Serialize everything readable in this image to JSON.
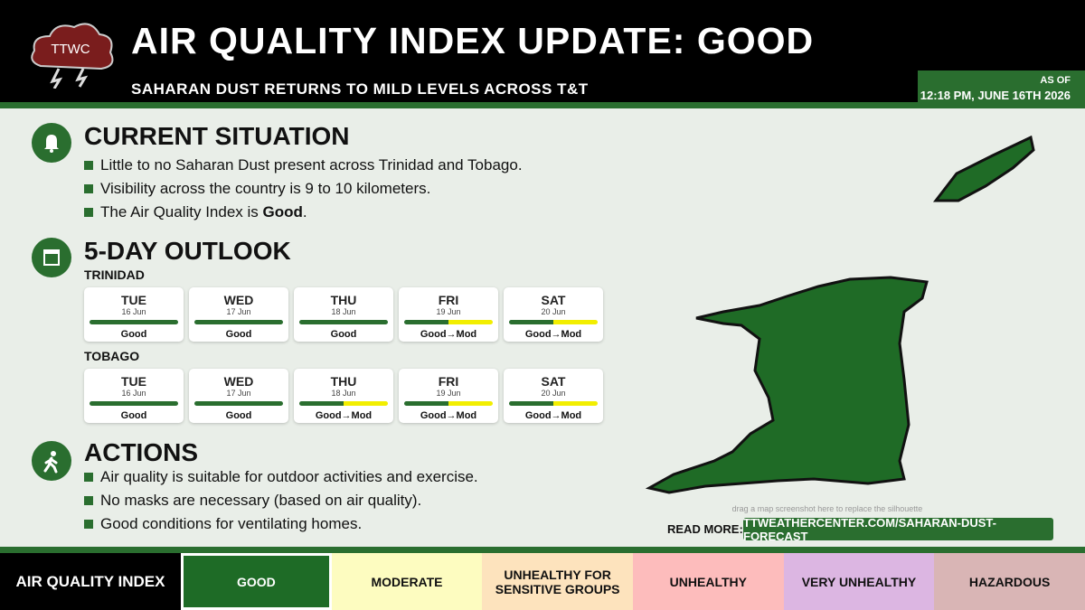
{
  "header": {
    "logo": "TTWC",
    "title": "AIR QUALITY INDEX UPDATE: GOOD",
    "subtitle": "SAHARAN DUST RETURNS TO MILD LEVELS ACROSS T&T",
    "as_of_label": "AS OF",
    "as_of": "12:18 PM, JUNE 16TH 2026"
  },
  "situation": {
    "heading": "CURRENT SITUATION",
    "bullets": [
      {
        "parts": [
          "Little to no Saharan Dust present across Trinidad and Tobago."
        ]
      },
      {
        "parts": [
          "Visibility across the country is 9 to 10 kilometers."
        ]
      },
      {
        "parts": [
          "The Air Quality Index is ",
          "Good",
          "."
        ]
      }
    ]
  },
  "outlook": {
    "heading": "5-DAY OUTLOOK",
    "regions": [
      {
        "name": "TRINIDAD",
        "days": [
          {
            "day": "TUE",
            "date": "16 Jun",
            "status": "Good",
            "bar": [
              "#2a6e2f"
            ]
          },
          {
            "day": "WED",
            "date": "17 Jun",
            "status": "Good",
            "bar": [
              "#2a6e2f"
            ]
          },
          {
            "day": "THU",
            "date": "18 Jun",
            "status": "Good",
            "bar": [
              "#2a6e2f"
            ]
          },
          {
            "day": "FRI",
            "date": "19 Jun",
            "status": "Good→Mod",
            "bar": [
              "#2a6e2f",
              "#f2ee00"
            ]
          },
          {
            "day": "SAT",
            "date": "20 Jun",
            "status": "Good→Mod",
            "bar": [
              "#2a6e2f",
              "#f2ee00"
            ]
          }
        ]
      },
      {
        "name": "TOBAGO",
        "days": [
          {
            "day": "TUE",
            "date": "16 Jun",
            "status": "Good",
            "bar": [
              "#2a6e2f"
            ]
          },
          {
            "day": "WED",
            "date": "17 Jun",
            "status": "Good",
            "bar": [
              "#2a6e2f"
            ]
          },
          {
            "day": "THU",
            "date": "18 Jun",
            "status": "Good→Mod",
            "bar": [
              "#2a6e2f",
              "#f2ee00"
            ]
          },
          {
            "day": "FRI",
            "date": "19 Jun",
            "status": "Good→Mod",
            "bar": [
              "#2a6e2f",
              "#f2ee00"
            ]
          },
          {
            "day": "SAT",
            "date": "20 Jun",
            "status": "Good→Mod",
            "bar": [
              "#2a6e2f",
              "#f2ee00"
            ]
          }
        ]
      }
    ]
  },
  "actions": {
    "heading": "ACTIONS",
    "bullets": [
      {
        "parts": [
          "Air quality is suitable for outdoor activities and exercise."
        ]
      },
      {
        "parts": [
          "No masks are necessary (based on air quality)."
        ]
      },
      {
        "parts": [
          "Good conditions for ventilating homes."
        ]
      }
    ]
  },
  "map": {
    "hint": "drag a map screenshot here to replace the silhouette"
  },
  "read_more": {
    "label": "READ MORE:",
    "link": "TTWEATHERCENTER.COM/SAHARAN-DUST-FORECAST"
  },
  "legend": {
    "title": "AIR QUALITY INDEX",
    "levels": [
      {
        "label": "GOOD",
        "color": "#1e6b26",
        "text": "#ffffff",
        "active": true
      },
      {
        "label": "MODERATE",
        "color": "#fdfcc0",
        "text": "#111111",
        "active": false
      },
      {
        "label": "UNHEALTHY FOR SENSITIVE GROUPS",
        "color": "#fde3bd",
        "text": "#111111",
        "active": false
      },
      {
        "label": "UNHEALTHY",
        "color": "#fdbcbc",
        "text": "#111111",
        "active": false
      },
      {
        "label": "VERY UNHEALTHY",
        "color": "#dcb6e2",
        "text": "#111111",
        "active": false
      },
      {
        "label": "HAZARDOUS",
        "color": "#d9b5b5",
        "text": "#111111",
        "active": false
      }
    ]
  }
}
